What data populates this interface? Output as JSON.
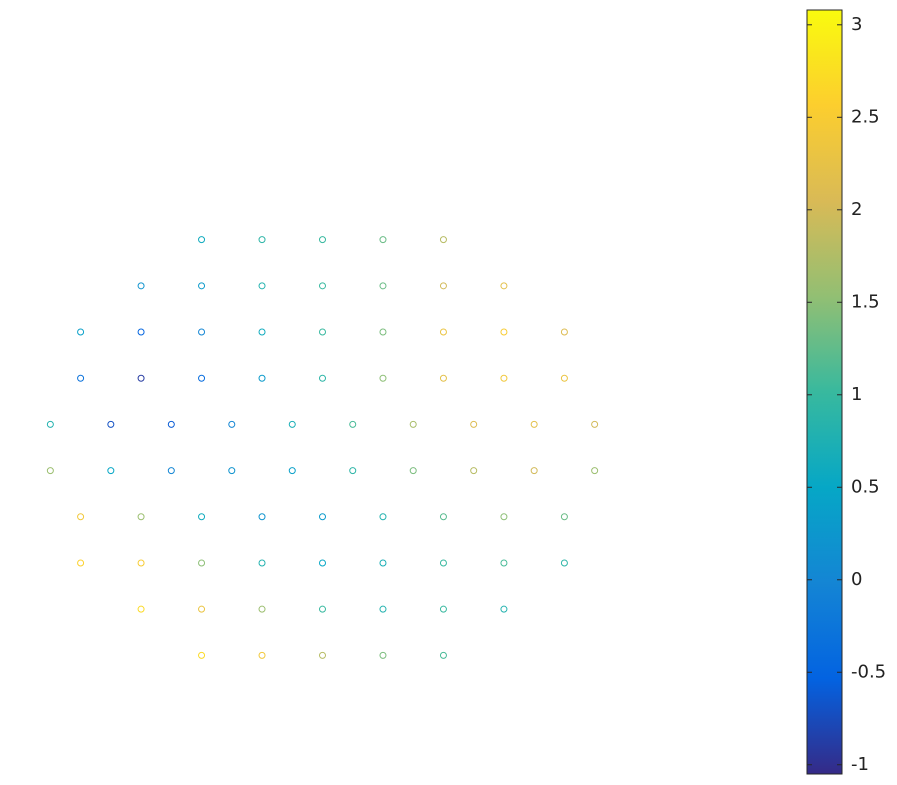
{
  "chart_data": {
    "type": "scatter",
    "x": [
      -0.4,
      -0.2,
      0,
      0.2,
      0.4,
      -0.6,
      -0.4,
      -0.2,
      0,
      0.2,
      0.4,
      0.6,
      -0.8,
      -0.6,
      -0.4,
      -0.2,
      0,
      0.2,
      0.4,
      0.6,
      0.8,
      -0.8,
      -0.6,
      -0.4,
      -0.2,
      0,
      0.2,
      0.4,
      0.6,
      0.8,
      -0.9,
      -0.7,
      -0.5,
      -0.3,
      -0.1,
      0.1,
      0.3,
      0.5,
      0.7,
      0.9,
      -0.9,
      -0.7,
      -0.5,
      -0.3,
      -0.1,
      0.1,
      0.3,
      0.5,
      0.7,
      0.9,
      -0.8,
      -0.6,
      -0.4,
      -0.2,
      0,
      0.2,
      0.4,
      0.6,
      0.8,
      -0.8,
      -0.6,
      -0.4,
      -0.2,
      0,
      0.2,
      0.4,
      0.6,
      0.8,
      -0.6,
      -0.4,
      -0.2,
      0,
      0.2,
      0.4,
      0.6,
      -0.4,
      -0.2,
      0,
      0.2,
      0.4
    ],
    "y": [
      0.9,
      0.9,
      0.9,
      0.9,
      0.9,
      0.7,
      0.7,
      0.7,
      0.7,
      0.7,
      0.7,
      0.7,
      0.5,
      0.5,
      0.5,
      0.5,
      0.5,
      0.5,
      0.5,
      0.5,
      0.5,
      0.3,
      0.3,
      0.3,
      0.3,
      0.3,
      0.3,
      0.3,
      0.3,
      0.3,
      0.1,
      0.1,
      0.1,
      0.1,
      0.1,
      0.1,
      0.1,
      0.1,
      0.1,
      0.1,
      -0.1,
      -0.1,
      -0.1,
      -0.1,
      -0.1,
      -0.1,
      -0.1,
      -0.1,
      -0.1,
      -0.1,
      -0.3,
      -0.3,
      -0.3,
      -0.3,
      -0.3,
      -0.3,
      -0.3,
      -0.3,
      -0.3,
      -0.5,
      -0.5,
      -0.5,
      -0.5,
      -0.5,
      -0.5,
      -0.5,
      -0.5,
      -0.5,
      -0.7,
      -0.7,
      -0.7,
      -0.7,
      -0.7,
      -0.7,
      -0.7,
      -0.9,
      -0.9,
      -0.9,
      -0.9,
      -0.9
    ],
    "c": [
      0.6,
      0.9,
      1.0,
      1.3,
      1.8,
      0.2,
      0.3,
      0.8,
      1.0,
      1.3,
      2.0,
      2.2,
      0.4,
      -0.5,
      0,
      0.6,
      1.0,
      1.4,
      2.3,
      2.5,
      2.1,
      -0.3,
      -0.9,
      -0.4,
      0.3,
      0.9,
      1.5,
      2.2,
      2.4,
      2.3,
      0.8,
      -0.7,
      -0.6,
      0,
      0.7,
      1.1,
      1.7,
      2.1,
      2.2,
      2.0,
      1.6,
      0.5,
      0,
      0.2,
      0.4,
      0.9,
      1.4,
      1.8,
      2.0,
      1.6,
      2.4,
      1.6,
      0.6,
      0.2,
      0.3,
      0.8,
      1.2,
      1.5,
      1.3,
      2.6,
      2.5,
      1.5,
      0.8,
      0.5,
      0.7,
      1.0,
      1.1,
      0.9,
      2.7,
      2.3,
      1.6,
      1.0,
      0.8,
      1.0,
      0.8,
      2.7,
      2.4,
      1.8,
      1.4,
      1.1
    ],
    "xlim": [
      -1.05,
      1.05
    ],
    "ylim": [
      -1.05,
      1.05
    ],
    "clim": [
      -1.05,
      3.08
    ],
    "cticks": [
      -1,
      -0.5,
      0,
      0.5,
      1,
      1.5,
      2,
      2.5,
      3
    ],
    "colormap": [
      "#352a87",
      "#0363e1",
      "#1485d4",
      "#06a7c6",
      "#38b99e",
      "#92bf73",
      "#d9ba56",
      "#fcce2e",
      "#f9fb0e"
    ]
  }
}
